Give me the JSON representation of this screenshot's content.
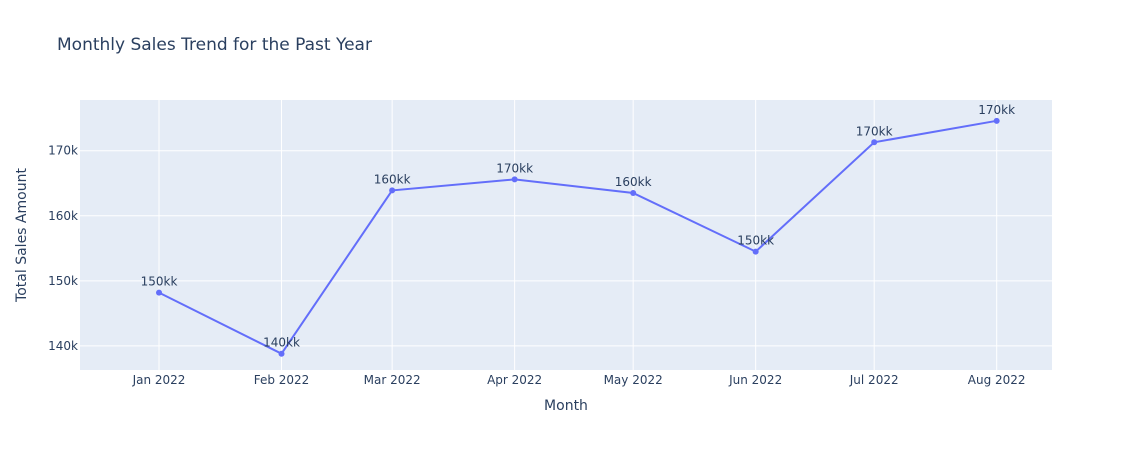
{
  "chart_data": {
    "type": "line",
    "title": "Monthly Sales Trend for the Past Year",
    "xlabel": "Month",
    "ylabel": "Total Sales Amount",
    "x": [
      "2022-01-01",
      "2022-02-01",
      "2022-03-01",
      "2022-04-01",
      "2022-05-01",
      "2022-06-01",
      "2022-07-01",
      "2022-08-01"
    ],
    "x_tick_labels": [
      "Jan 2022",
      "Feb 2022",
      "Mar 2022",
      "Apr 2022",
      "May 2022",
      "Jun 2022",
      "Jul 2022",
      "Aug 2022"
    ],
    "series": [
      {
        "values": [
          148200,
          138800,
          163900,
          165600,
          163500,
          154500,
          171300,
          174600
        ],
        "labels": [
          "150kk",
          "140kk",
          "160kk",
          "170kk",
          "160kk",
          "150kk",
          "170kk",
          "170kk"
        ]
      }
    ],
    "ylim": [
      136300,
      177800
    ],
    "y_ticks": [
      140000,
      150000,
      160000,
      170000
    ],
    "y_tick_labels": [
      "140k",
      "150k",
      "160k",
      "170k"
    ],
    "grid": true,
    "colors": {
      "line": "#636efa",
      "plot_bg": "#e5ecf6",
      "grid": "#ffffff",
      "text": "#2a3f5f"
    }
  }
}
